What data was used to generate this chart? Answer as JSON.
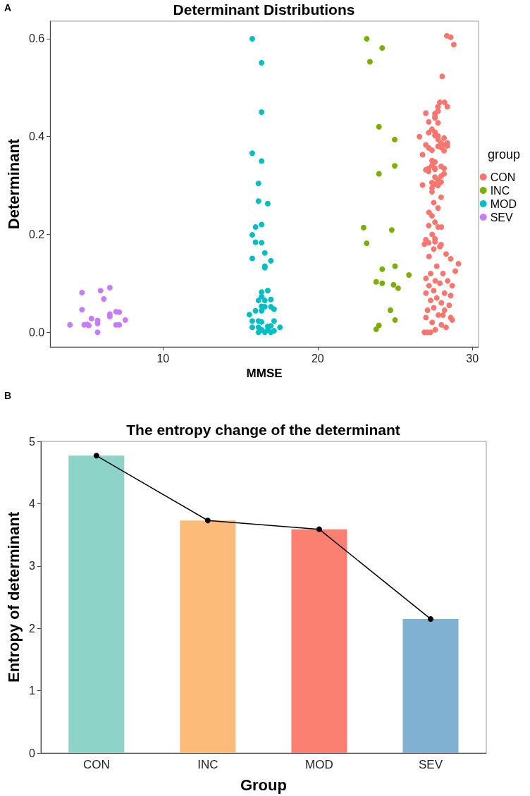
{
  "chart_data": [
    {
      "type": "scatter",
      "title": "Determinant Distributions",
      "xlabel": "MMSE",
      "ylabel": "Determinant",
      "legend_title": "group",
      "legend": "right",
      "grid": false,
      "marker": "circle",
      "annotations": [
        "A"
      ],
      "xlim": [
        2.7,
        30.4
      ],
      "xticks": [
        10,
        20,
        30
      ],
      "ylim": [
        -0.03,
        0.636
      ],
      "yticks": [
        {
          "value": 0,
          "label": "0.0"
        },
        {
          "value": 0.2,
          "label": "0.2"
        },
        {
          "value": 0.4,
          "label": "0.4"
        },
        {
          "value": 0.6,
          "label": "0.6"
        }
      ],
      "series": [
        {
          "name": "CON",
          "color": "#f8766d",
          "x": [
            27.77,
            28.38,
            26.99,
            27.58,
            27.58,
            27.78,
            27.18,
            27.78,
            27.58,
            27.39,
            27.58,
            27.18,
            26.58,
            27.58,
            27.78,
            27.78,
            28.17,
            27.98,
            28.38,
            28.17,
            28.38,
            27.78,
            27.98,
            26.99,
            27.18,
            27.39,
            28.17,
            26.78,
            27.39,
            27.58,
            27.39,
            27.58,
            26.99,
            27.18,
            27.58,
            27.98,
            28.17,
            27.18,
            28.17,
            27.98,
            27.58,
            27.78,
            27.39,
            27.98,
            27.78,
            27.58,
            27.39,
            26.78,
            27.39,
            27.98,
            27.78,
            27.39,
            27.58,
            27.18,
            27.78,
            26.99,
            27.18,
            27.58,
            27.58,
            27.98,
            28.35,
            28.6,
            28.8,
            28.05,
            28.2,
            27.9,
            27.5,
            27.9,
            28.3,
            26.9,
            27.2,
            28.6,
            29.1,
            28.9,
            27.7,
            27.3,
            28.1,
            27.0,
            27.6,
            28.4,
            27.9,
            27.2,
            28.7,
            27.5,
            27.0,
            28.2,
            28.6,
            27.7,
            27.3,
            28.0,
            28.5,
            27.5,
            27.1,
            28.2,
            27.8,
            28.6,
            27.0,
            28.7,
            27.4,
            28.0,
            26.9,
            27.1,
            27.3,
            28.3,
            27.6,
            28.1,
            27.2,
            27.5,
            28.0,
            27.4
          ],
          "values": [
            0.461,
            0.461,
            0.448,
            0.447,
            0.441,
            0.452,
            0.43,
            0.428,
            0.438,
            0.415,
            0.409,
            0.408,
            0.4,
            0.402,
            0.401,
            0.394,
            0.397,
            0.387,
            0.387,
            0.383,
            0.381,
            0.38,
            0.378,
            0.383,
            0.377,
            0.372,
            0.371,
            0.363,
            0.351,
            0.348,
            0.341,
            0.335,
            0.332,
            0.329,
            0.333,
            0.339,
            0.335,
            0.335,
            0.324,
            0.319,
            0.317,
            0.311,
            0.306,
            0.307,
            0.3,
            0.303,
            0.295,
            0.301,
            0.287,
            0.276,
            0.254,
            0.238,
            0.225,
            0.218,
            0.215,
            0.189,
            0.183,
            0.191,
            0.185,
            0.179,
            0.606,
            0.603,
            0.588,
            0.523,
            0.47,
            0.47,
            0.17,
            0.175,
            0.16,
            0.18,
            0.155,
            0.15,
            0.14,
            0.125,
            0.135,
            0.12,
            0.12,
            0.11,
            0.105,
            0.105,
            0.1,
            0.095,
            0.095,
            0.085,
            0.08,
            0.08,
            0.075,
            0.07,
            0.065,
            0.06,
            0.055,
            0.05,
            0.045,
            0.045,
            0.035,
            0.03,
            0.03,
            0.025,
            0.02,
            0.015,
            0.0,
            0.0,
            0.0,
            0.01,
            0.005,
            0.035,
            0.245,
            0.265,
            0.215,
            0.2
          ]
        },
        {
          "name": "INC",
          "color": "#7cae00",
          "x": [
            23.17,
            24.17,
            23.38,
            23.96,
            24.98,
            24.98,
            23.96,
            22.97,
            24.79,
            23.17,
            24.17,
            23.78,
            24.17,
            23.96,
            23.78,
            25.0,
            25.9,
            25.2,
            24.7,
            25.0,
            24.9
          ],
          "values": [
            0.6,
            0.581,
            0.553,
            0.42,
            0.394,
            0.34,
            0.324,
            0.214,
            0.209,
            0.182,
            0.129,
            0.103,
            0.1,
            0.014,
            0.006,
            0.135,
            0.117,
            0.09,
            0.045,
            0.025,
            0.097
          ]
        },
        {
          "name": "MOD",
          "color": "#00bfc4",
          "x": [
            15.77,
            16.37,
            16.37,
            15.77,
            16.37,
            16.17,
            16.17,
            16.77,
            16.37,
            15.98,
            15.77,
            15.98,
            16.37,
            16.58,
            15.77,
            16.97,
            16.58,
            16.58,
            16.77,
            16.37,
            16.37,
            16.17,
            16.58,
            16.97,
            16.37,
            16.58,
            16.97,
            15.98,
            16.37,
            17.18,
            15.58,
            15.77,
            16.17,
            16.37,
            17.18,
            15.77,
            16.17,
            16.77,
            16.97,
            17.56,
            16.17,
            16.58,
            16.97,
            17.18,
            16.37,
            16.77
          ],
          "values": [
            0.6,
            0.551,
            0.45,
            0.366,
            0.35,
            0.304,
            0.268,
            0.263,
            0.22,
            0.215,
            0.199,
            0.184,
            0.183,
            0.162,
            0.151,
            0.146,
            0.135,
            0.132,
            0.085,
            0.082,
            0.073,
            0.065,
            0.065,
            0.067,
            0.053,
            0.052,
            0.052,
            0.044,
            0.044,
            0.047,
            0.036,
            0.023,
            0.023,
            0.021,
            0.023,
            0.01,
            0.01,
            0.012,
            0.013,
            0.01,
            0.0,
            0.0,
            0.0,
            0.003,
            0.005,
            0.005
          ]
        },
        {
          "name": "SEV",
          "color": "#c77cff",
          "x": [
            3.98,
            4.76,
            4.76,
            4.9,
            5.1,
            5.2,
            5.37,
            5.77,
            5.77,
            5.77,
            5.96,
            6.17,
            6.56,
            6.56,
            6.56,
            6.96,
            7.17,
            6.96,
            7.17,
            7.56
          ],
          "values": [
            0.015,
            0.081,
            0.046,
            0.015,
            0.016,
            0.014,
            0.028,
            0.024,
            0.018,
            0.0,
            0.085,
            0.068,
            0.091,
            0.037,
            0.032,
            0.042,
            0.041,
            0.015,
            0.015,
            0.025
          ]
        }
      ]
    },
    {
      "type": "bar",
      "title": "The entropy change of the determinant",
      "xlabel": "Group",
      "ylabel": "Entropy of determinant",
      "grid": false,
      "annotations": [
        "B"
      ],
      "categories": [
        "CON",
        "INC",
        "MOD",
        "SEV"
      ],
      "ylim": [
        0,
        5
      ],
      "yticks": [
        0,
        1,
        2,
        3,
        4,
        5
      ],
      "series": [
        {
          "type": "bar",
          "colors": [
            "#8dd3c7",
            "#fdbb79",
            "#fb8072",
            "#80b1d3"
          ],
          "values": [
            4.77,
            3.73,
            3.59,
            2.15
          ]
        },
        {
          "type": "line",
          "color": "#000000",
          "marker": "circle",
          "line_style": "solid",
          "values": [
            4.77,
            3.73,
            3.59,
            2.15
          ]
        }
      ]
    }
  ]
}
